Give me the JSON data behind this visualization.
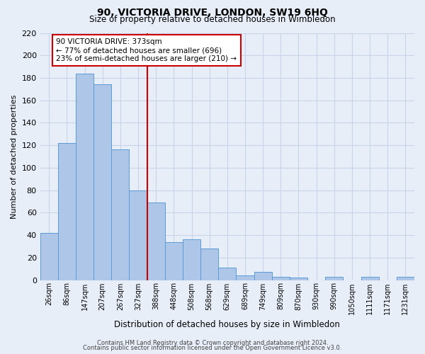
{
  "title": "90, VICTORIA DRIVE, LONDON, SW19 6HQ",
  "subtitle": "Size of property relative to detached houses in Wimbledon",
  "xlabel": "Distribution of detached houses by size in Wimbledon",
  "ylabel": "Number of detached properties",
  "bar_labels": [
    "26sqm",
    "86sqm",
    "147sqm",
    "207sqm",
    "267sqm",
    "327sqm",
    "388sqm",
    "448sqm",
    "508sqm",
    "568sqm",
    "629sqm",
    "689sqm",
    "749sqm",
    "809sqm",
    "870sqm",
    "930sqm",
    "990sqm",
    "1050sqm",
    "1111sqm",
    "1171sqm",
    "1231sqm"
  ],
  "bar_values": [
    42,
    122,
    184,
    174,
    116,
    80,
    69,
    34,
    36,
    28,
    11,
    4,
    7,
    3,
    2,
    0,
    3,
    0,
    3,
    0,
    3
  ],
  "vline_x": 6.0,
  "annotation_title": "90 VICTORIA DRIVE: 373sqm",
  "annotation_line1": "← 77% of detached houses are smaller (696)",
  "annotation_line2": "23% of semi-detached houses are larger (210) →",
  "bar_color": "#aec6e8",
  "bar_edge_color": "#5b9bd5",
  "vline_color": "#cc0000",
  "annotation_box_color": "#ffffff",
  "annotation_box_edge": "#cc0000",
  "grid_color": "#c8d4e8",
  "background_color": "#e8eef8",
  "ylim": [
    0,
    220
  ],
  "yticks": [
    0,
    20,
    40,
    60,
    80,
    100,
    120,
    140,
    160,
    180,
    200,
    220
  ],
  "footer1": "Contains HM Land Registry data © Crown copyright and database right 2024.",
  "footer2": "Contains public sector information licensed under the Open Government Licence v3.0."
}
